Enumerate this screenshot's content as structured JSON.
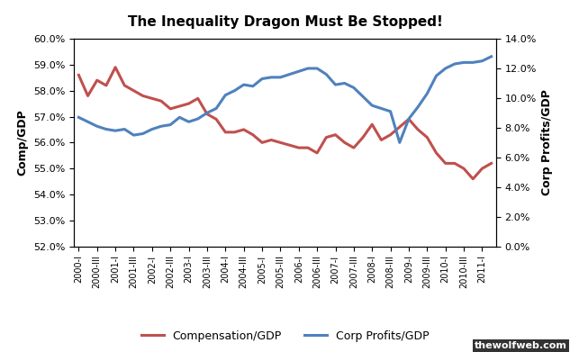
{
  "chart_data": {
    "type": "line",
    "title": "The Inequality Dragon Must Be Stopped!",
    "y_label": "Comp/GDP",
    "y2_label": "Corp Profits/GDP",
    "categories": [
      "2000-I",
      null,
      "2000-III",
      null,
      "2001-I",
      null,
      "2001-III",
      null,
      "2002-I",
      null,
      "2002-III",
      null,
      "2003-I",
      null,
      "2003-III",
      null,
      "2004-I",
      null,
      "2004-III",
      null,
      "2005-I",
      null,
      "2005-III",
      null,
      "2006-I",
      null,
      "2006-III",
      null,
      "2007-I",
      null,
      "2007-III",
      null,
      "2008-I",
      null,
      "2008-III",
      null,
      "2009-I",
      null,
      "2009-III",
      null,
      "2010-I",
      null,
      "2010-III",
      null,
      "2011-I",
      null
    ],
    "series": [
      {
        "name": "Compensation/GDP",
        "color": "#c0504d",
        "axis": "y",
        "values": [
          58.6,
          57.8,
          58.4,
          58.2,
          58.9,
          58.2,
          58.0,
          57.8,
          57.7,
          57.6,
          57.3,
          57.4,
          57.5,
          57.7,
          57.1,
          56.9,
          56.4,
          56.4,
          56.5,
          56.3,
          56.0,
          56.1,
          56.0,
          55.9,
          55.8,
          55.8,
          55.6,
          56.2,
          56.3,
          56.0,
          55.8,
          56.2,
          56.7,
          56.1,
          56.3,
          56.6,
          56.9,
          56.5,
          56.2,
          55.6,
          55.2,
          55.2,
          55.0,
          54.6,
          55.0,
          55.2
        ]
      },
      {
        "name": "Corp Profits/GDP",
        "color": "#4f81bd",
        "axis": "y2",
        "values": [
          8.7,
          8.4,
          8.1,
          7.9,
          7.8,
          7.9,
          7.5,
          7.6,
          7.9,
          8.1,
          8.2,
          8.7,
          8.4,
          8.6,
          9.0,
          9.3,
          10.2,
          10.5,
          10.9,
          10.8,
          11.3,
          11.4,
          11.4,
          11.6,
          11.8,
          12.0,
          12.0,
          11.6,
          10.9,
          11.0,
          10.7,
          10.1,
          9.5,
          9.3,
          9.1,
          7.0,
          8.6,
          9.4,
          10.3,
          11.5,
          12.0,
          12.3,
          12.4,
          12.4,
          12.5,
          12.8
        ]
      }
    ],
    "ylim": [
      52,
      60
    ],
    "yticks": [
      {
        "value": 52,
        "label": "52.0%"
      },
      {
        "value": 53,
        "label": "53.0%"
      },
      {
        "value": 54,
        "label": "54.0%"
      },
      {
        "value": 55,
        "label": "55.0%"
      },
      {
        "value": 56,
        "label": "56.0%"
      },
      {
        "value": 57,
        "label": "57.0%"
      },
      {
        "value": 58,
        "label": "58.0%"
      },
      {
        "value": 59,
        "label": "59.0%"
      },
      {
        "value": 60,
        "label": "60.0%"
      }
    ],
    "y2lim": [
      0,
      14
    ],
    "y2ticks": [
      {
        "value": 0,
        "label": "0.0%"
      },
      {
        "value": 2,
        "label": "2.0%"
      },
      {
        "value": 4,
        "label": "4.0%"
      },
      {
        "value": 6,
        "label": "6.0%"
      },
      {
        "value": 8,
        "label": "8.0%"
      },
      {
        "value": 10,
        "label": "10.0%"
      },
      {
        "value": 12,
        "label": "12.0%"
      },
      {
        "value": 14,
        "label": "14.0%"
      }
    ],
    "grid": false,
    "legend": "bottom",
    "annotations": [
      "thewolfweb.com"
    ]
  }
}
